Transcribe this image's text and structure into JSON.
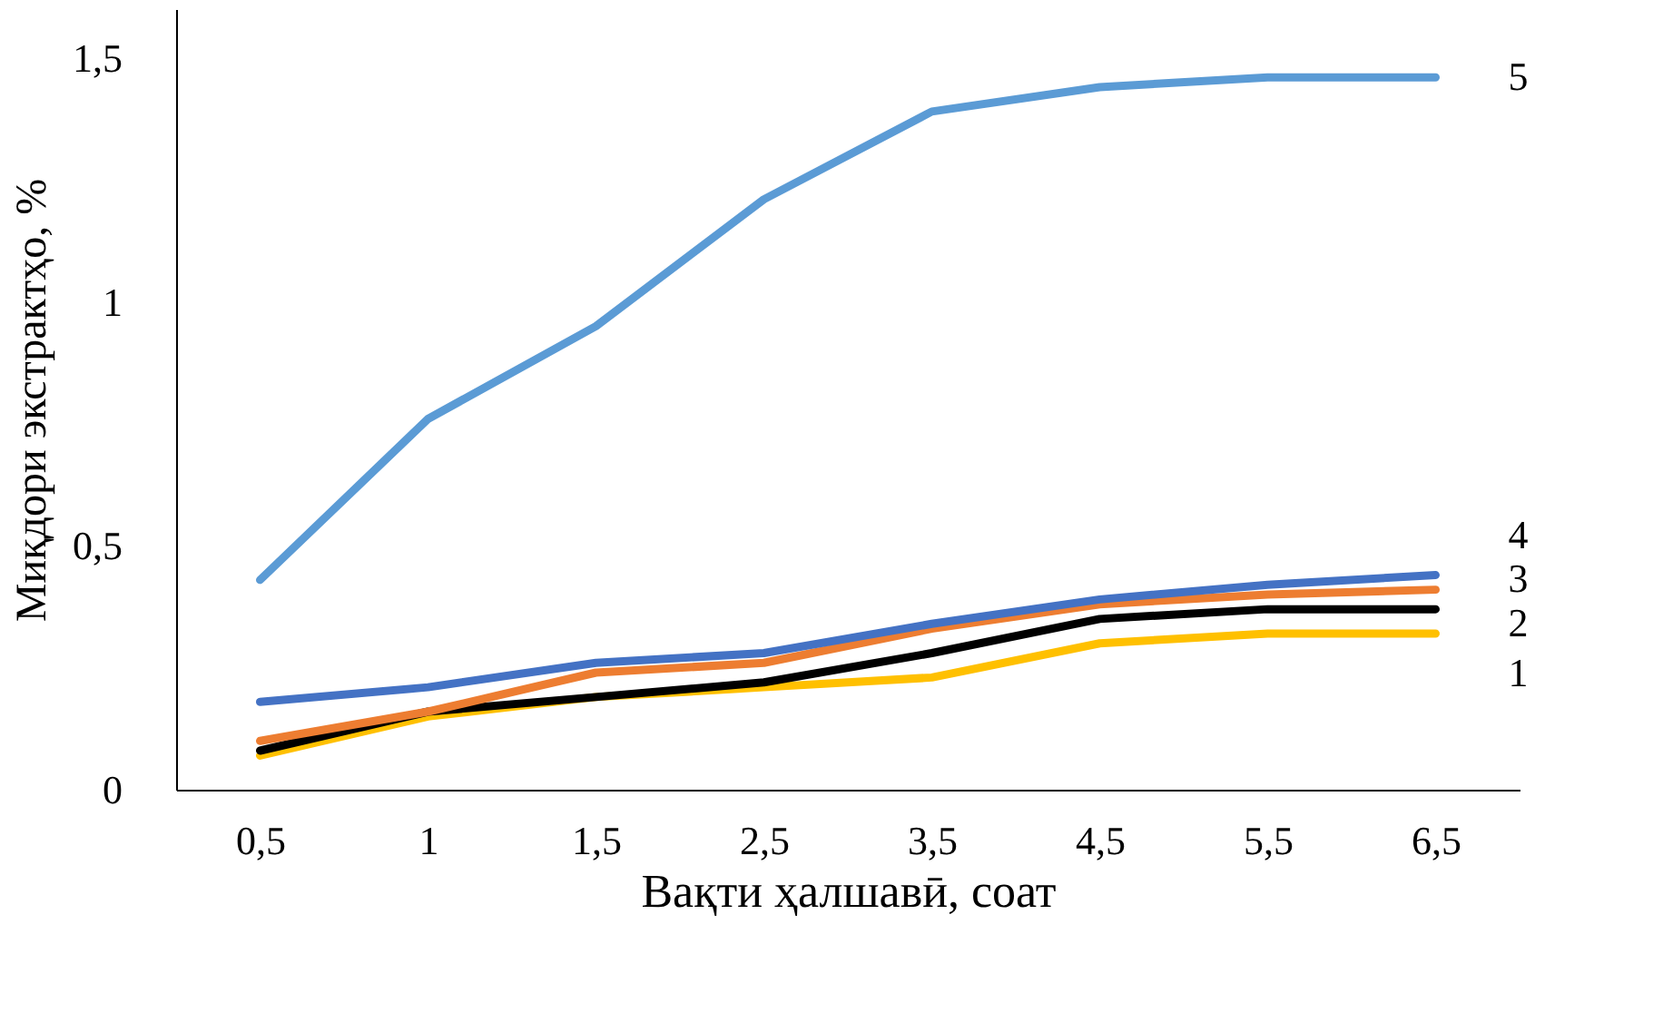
{
  "chart_data": {
    "type": "line",
    "xlabel": "Вақти ҳалшавӣ, соат",
    "ylabel": "Миқдори экстрактҳо, %",
    "categories": [
      "0,5",
      "1",
      "1,5",
      "2,5",
      "3,5",
      "4,5",
      "5,5",
      "6,5"
    ],
    "ylim": [
      0,
      1.6
    ],
    "yticks": [
      0,
      {
        "value": 0.5,
        "label": "0,5"
      },
      1,
      {
        "value": 1.5,
        "label": "1,5"
      }
    ],
    "grid": false,
    "legend": false,
    "marker": "none",
    "line_style": "solid",
    "series": [
      {
        "name": "1",
        "color": "#ffc000",
        "values": [
          0.07,
          0.15,
          0.19,
          0.21,
          0.23,
          0.3,
          0.32,
          0.32
        ]
      },
      {
        "name": "2",
        "color": "#000000",
        "values": [
          0.08,
          0.16,
          0.19,
          0.22,
          0.28,
          0.35,
          0.37,
          0.37
        ]
      },
      {
        "name": "3",
        "color": "#ed7d31",
        "values": [
          0.1,
          0.16,
          0.24,
          0.26,
          0.33,
          0.38,
          0.4,
          0.41
        ]
      },
      {
        "name": "4",
        "color": "#4472c4",
        "values": [
          0.18,
          0.21,
          0.26,
          0.28,
          0.34,
          0.39,
          0.42,
          0.44
        ]
      },
      {
        "name": "5",
        "color": "#5b9bd5",
        "values": [
          0.43,
          0.76,
          0.95,
          1.21,
          1.39,
          1.44,
          1.46,
          1.46
        ]
      }
    ]
  }
}
